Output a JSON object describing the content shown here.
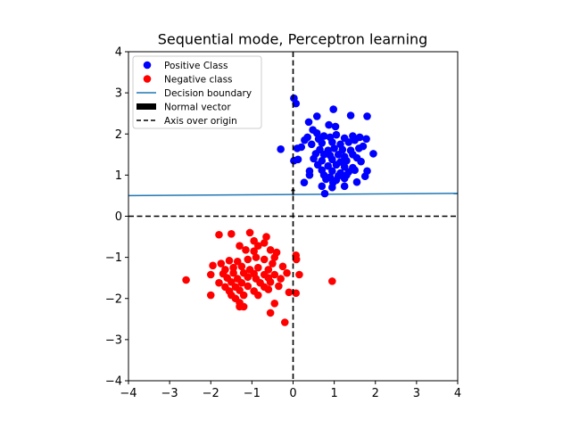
{
  "chart_data": {
    "type": "scatter",
    "title": "Sequential mode, Perceptron learning",
    "xlabel": "",
    "ylabel": "",
    "xlim": [
      -4,
      4
    ],
    "ylim": [
      -4,
      4
    ],
    "xticks": [
      -4,
      -3,
      -2,
      -1,
      0,
      1,
      2,
      3,
      4
    ],
    "yticks": [
      -4,
      -3,
      -2,
      -1,
      0,
      1,
      2,
      3,
      4
    ],
    "grid": false,
    "legend_position": "top-left",
    "colors": {
      "positive": "#0000ff",
      "negative": "#ff0000",
      "boundary": "#1f77b4",
      "normal": "#000000",
      "axis": "#000000"
    },
    "series": [
      {
        "name": "Positive Class",
        "kind": "points",
        "color": "#0000ff",
        "points": [
          [
            0.02,
            2.87
          ],
          [
            0.07,
            2.74
          ],
          [
            0.98,
            2.6
          ],
          [
            0.58,
            2.43
          ],
          [
            1.4,
            2.45
          ],
          [
            1.8,
            2.43
          ],
          [
            0.38,
            2.29
          ],
          [
            0.87,
            2.22
          ],
          [
            1.03,
            2.18
          ],
          [
            0.48,
            2.1
          ],
          [
            0.58,
            2.02
          ],
          [
            0.35,
            1.92
          ],
          [
            0.28,
            1.85
          ],
          [
            0.62,
            1.88
          ],
          [
            0.75,
            1.95
          ],
          [
            0.9,
            1.92
          ],
          [
            1.05,
            1.98
          ],
          [
            1.25,
            1.9
          ],
          [
            1.45,
            1.95
          ],
          [
            1.62,
            1.92
          ],
          [
            1.78,
            1.88
          ],
          [
            1.5,
            1.85
          ],
          [
            0.45,
            1.75
          ],
          [
            0.7,
            1.78
          ],
          [
            0.95,
            1.8
          ],
          [
            1.15,
            1.75
          ],
          [
            1.35,
            1.8
          ],
          [
            1.7,
            1.7
          ],
          [
            -0.3,
            1.63
          ],
          [
            0.1,
            1.65
          ],
          [
            0.2,
            1.68
          ],
          [
            0.65,
            1.62
          ],
          [
            0.85,
            1.6
          ],
          [
            1.0,
            1.65
          ],
          [
            1.2,
            1.62
          ],
          [
            1.4,
            1.6
          ],
          [
            1.6,
            1.65
          ],
          [
            1.95,
            1.52
          ],
          [
            0.55,
            1.52
          ],
          [
            0.75,
            1.5
          ],
          [
            0.9,
            1.48
          ],
          [
            1.1,
            1.5
          ],
          [
            1.25,
            1.45
          ],
          [
            1.45,
            1.5
          ],
          [
            1.55,
            1.42
          ],
          [
            0.02,
            1.35
          ],
          [
            0.12,
            1.38
          ],
          [
            0.5,
            1.4
          ],
          [
            0.7,
            1.35
          ],
          [
            0.95,
            1.38
          ],
          [
            1.15,
            1.32
          ],
          [
            1.3,
            1.35
          ],
          [
            1.65,
            1.33
          ],
          [
            0.6,
            1.25
          ],
          [
            0.85,
            1.22
          ],
          [
            1.05,
            1.25
          ],
          [
            1.25,
            1.2
          ],
          [
            1.45,
            1.18
          ],
          [
            0.4,
            1.1
          ],
          [
            0.7,
            1.12
          ],
          [
            0.95,
            1.1
          ],
          [
            1.15,
            1.05
          ],
          [
            1.35,
            1.08
          ],
          [
            1.5,
            1.12
          ],
          [
            1.8,
            1.1
          ],
          [
            0.4,
            1.0
          ],
          [
            0.75,
            1.0
          ],
          [
            0.9,
            0.95
          ],
          [
            1.1,
            0.98
          ],
          [
            1.3,
            1.0
          ],
          [
            1.75,
            0.97
          ],
          [
            0.8,
            0.9
          ],
          [
            1.05,
            0.88
          ],
          [
            1.25,
            0.92
          ],
          [
            0.27,
            0.82
          ],
          [
            0.97,
            0.82
          ],
          [
            1.55,
            0.83
          ],
          [
            0.7,
            0.73
          ],
          [
            0.95,
            0.7
          ],
          [
            1.25,
            0.73
          ],
          [
            0.77,
            0.55
          ]
        ]
      },
      {
        "name": "Negative class",
        "kind": "points",
        "color": "#ff0000",
        "points": [
          [
            -1.05,
            -0.4
          ],
          [
            -1.8,
            -0.45
          ],
          [
            -1.5,
            -0.43
          ],
          [
            -0.65,
            -0.5
          ],
          [
            -0.95,
            -0.6
          ],
          [
            -0.7,
            -0.65
          ],
          [
            -1.3,
            -0.72
          ],
          [
            -0.85,
            -0.72
          ],
          [
            -1.15,
            -0.82
          ],
          [
            -0.55,
            -0.82
          ],
          [
            -0.95,
            -0.85
          ],
          [
            -0.4,
            -0.88
          ],
          [
            0.07,
            -0.95
          ],
          [
            0.08,
            -1.05
          ],
          [
            -0.45,
            -1.0
          ],
          [
            -0.9,
            -1.0
          ],
          [
            -1.1,
            -1.05
          ],
          [
            -1.35,
            -1.1
          ],
          [
            -1.55,
            -1.08
          ],
          [
            -0.7,
            -1.05
          ],
          [
            -1.75,
            -1.15
          ],
          [
            -1.95,
            -1.2
          ],
          [
            -0.5,
            -1.15
          ],
          [
            -0.25,
            -1.22
          ],
          [
            -1.25,
            -1.22
          ],
          [
            -1.45,
            -1.25
          ],
          [
            -0.85,
            -1.25
          ],
          [
            -1.65,
            -1.3
          ],
          [
            -1.05,
            -1.3
          ],
          [
            -0.6,
            -1.3
          ],
          [
            -2.0,
            -1.42
          ],
          [
            -1.7,
            -1.4
          ],
          [
            -1.45,
            -1.38
          ],
          [
            -1.2,
            -1.38
          ],
          [
            -0.95,
            -1.4
          ],
          [
            -0.7,
            -1.42
          ],
          [
            -0.45,
            -1.42
          ],
          [
            -0.15,
            -1.38
          ],
          [
            0.15,
            -1.42
          ],
          [
            -2.6,
            -1.55
          ],
          [
            -1.6,
            -1.5
          ],
          [
            -1.35,
            -1.52
          ],
          [
            -1.1,
            -1.48
          ],
          [
            -0.9,
            -1.52
          ],
          [
            -0.6,
            -1.5
          ],
          [
            -0.3,
            -1.52
          ],
          [
            0.95,
            -1.58
          ],
          [
            -1.8,
            -1.62
          ],
          [
            -1.5,
            -1.6
          ],
          [
            -1.25,
            -1.62
          ],
          [
            -0.8,
            -1.62
          ],
          [
            -0.55,
            -1.6
          ],
          [
            -1.65,
            -1.72
          ],
          [
            -1.4,
            -1.72
          ],
          [
            -1.1,
            -1.7
          ],
          [
            -0.7,
            -1.72
          ],
          [
            -0.35,
            -1.7
          ],
          [
            -1.55,
            -1.82
          ],
          [
            -1.3,
            -1.8
          ],
          [
            -0.95,
            -1.82
          ],
          [
            -0.6,
            -1.78
          ],
          [
            -0.1,
            -1.85
          ],
          [
            0.07,
            -1.87
          ],
          [
            -2.0,
            -1.92
          ],
          [
            -1.5,
            -1.92
          ],
          [
            -1.2,
            -1.92
          ],
          [
            -0.85,
            -1.92
          ],
          [
            -1.4,
            -2.0
          ],
          [
            -1.3,
            -2.1
          ],
          [
            -0.45,
            -2.12
          ],
          [
            -1.3,
            -2.2
          ],
          [
            -1.2,
            -2.2
          ],
          [
            -0.55,
            -2.35
          ],
          [
            -0.2,
            -2.58
          ]
        ]
      },
      {
        "name": "Decision boundary",
        "kind": "line",
        "color": "#1f77b4",
        "x": [
          -4,
          4
        ],
        "y": [
          0.5,
          0.555
        ]
      },
      {
        "name": "Normal vector",
        "kind": "arrow",
        "color": "#000000",
        "from": [
          0,
          0.52
        ],
        "to": [
          0,
          0.7
        ]
      },
      {
        "name": "Axis over origin",
        "kind": "dashed-axes",
        "color": "#000000",
        "x": 0,
        "y": 0
      }
    ]
  }
}
